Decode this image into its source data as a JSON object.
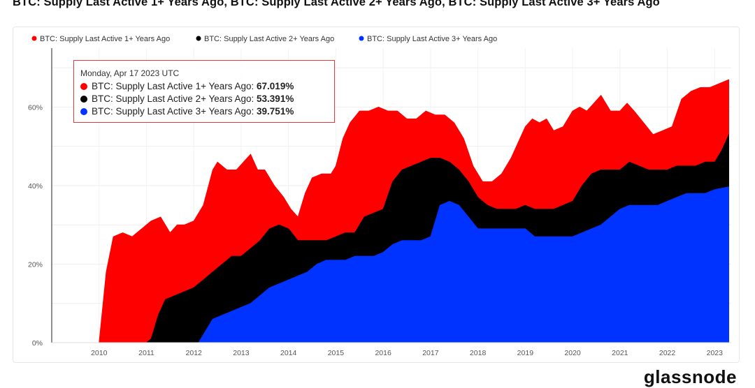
{
  "title": "BTC: Supply Last Active 1+ Years Ago, BTC: Supply Last Active 2+ Years Ago, BTC: Supply Last Active 3+ Years Ago",
  "brand": "glassnode",
  "tooltip": {
    "date": "Monday, Apr 17 2023 UTC",
    "rows": [
      {
        "label": "BTC: Supply Last Active 1+ Years Ago: ",
        "value": "67.019%",
        "color": "#ff0000"
      },
      {
        "label": "BTC: Supply Last Active 2+ Years Ago: ",
        "value": "53.391%",
        "color": "#000000"
      },
      {
        "label": "BTC: Supply Last Active 3+ Years Ago: ",
        "value": "39.751%",
        "color": "#0033ff"
      }
    ]
  },
  "chart_data": {
    "type": "area",
    "title": "BTC: Supply Last Active 1+ Years Ago, BTC: Supply Last Active 2+ Years Ago, BTC: Supply Last Active 3+ Years Ago",
    "xlabel": "",
    "ylabel": "",
    "ylim": [
      0,
      75
    ],
    "y_ticks": [
      "0%",
      "20%",
      "40%",
      "60%"
    ],
    "y_tick_values": [
      0,
      20,
      40,
      60
    ],
    "x_ticks": [
      "2010",
      "2011",
      "2012",
      "2013",
      "2014",
      "2015",
      "2016",
      "2017",
      "2018",
      "2019",
      "2020",
      "2021",
      "2022",
      "2023"
    ],
    "x_tick_values": [
      2010,
      2011,
      2012,
      2013,
      2014,
      2015,
      2016,
      2017,
      2018,
      2019,
      2020,
      2021,
      2022,
      2023
    ],
    "xlim": [
      2009.0,
      2023.35
    ],
    "grid": true,
    "legend_position": "top-left",
    "series": [
      {
        "name": "BTC: Supply Last Active 1+ Years Ago",
        "color": "#ff0000",
        "x": [
          2010.0,
          2010.15,
          2010.3,
          2010.5,
          2010.7,
          2010.9,
          2011.1,
          2011.3,
          2011.5,
          2011.65,
          2011.8,
          2012.0,
          2012.2,
          2012.4,
          2012.5,
          2012.7,
          2012.9,
          2013.05,
          2013.2,
          2013.35,
          2013.5,
          2013.7,
          2013.9,
          2014.05,
          2014.2,
          2014.35,
          2014.5,
          2014.7,
          2014.9,
          2015.0,
          2015.15,
          2015.3,
          2015.5,
          2015.7,
          2015.9,
          2016.1,
          2016.3,
          2016.5,
          2016.7,
          2016.9,
          2017.1,
          2017.3,
          2017.5,
          2017.7,
          2017.9,
          2018.0,
          2018.1,
          2018.3,
          2018.5,
          2018.7,
          2018.85,
          2019.0,
          2019.15,
          2019.3,
          2019.45,
          2019.6,
          2019.8,
          2020.0,
          2020.15,
          2020.3,
          2020.45,
          2020.6,
          2020.8,
          2021.0,
          2021.15,
          2021.3,
          2021.5,
          2021.7,
          2021.9,
          2022.1,
          2022.3,
          2022.5,
          2022.7,
          2022.9,
          2023.1,
          2023.3
        ],
        "values": [
          0,
          18,
          27,
          28,
          27,
          29,
          31,
          32,
          28,
          30,
          30,
          31,
          35,
          44,
          46,
          44,
          44,
          46,
          48,
          44,
          44,
          40,
          37,
          34,
          32,
          38,
          42,
          43,
          43,
          45,
          52,
          56,
          59,
          59,
          60,
          59,
          59,
          57,
          57,
          59,
          58,
          58,
          56,
          52,
          45,
          43,
          41,
          41,
          43,
          47,
          51,
          55,
          57,
          56,
          57,
          54,
          55,
          59,
          60,
          59,
          61,
          63,
          59,
          59,
          61,
          59,
          56,
          53,
          54,
          55,
          62,
          64,
          65,
          65,
          66,
          67
        ]
      },
      {
        "name": "BTC: Supply Last Active 2+ Years Ago",
        "color": "#000000",
        "x": [
          2010.0,
          2010.5,
          2011.0,
          2011.1,
          2011.25,
          2011.4,
          2011.6,
          2011.8,
          2012.0,
          2012.2,
          2012.4,
          2012.6,
          2012.8,
          2013.0,
          2013.2,
          2013.4,
          2013.6,
          2013.8,
          2014.0,
          2014.2,
          2014.4,
          2014.6,
          2014.8,
          2015.0,
          2015.2,
          2015.4,
          2015.6,
          2015.8,
          2016.0,
          2016.2,
          2016.4,
          2016.6,
          2016.8,
          2017.0,
          2017.2,
          2017.4,
          2017.6,
          2017.8,
          2018.0,
          2018.2,
          2018.4,
          2018.6,
          2018.8,
          2019.0,
          2019.2,
          2019.4,
          2019.6,
          2019.8,
          2020.0,
          2020.2,
          2020.4,
          2020.6,
          2020.8,
          2021.0,
          2021.2,
          2021.4,
          2021.6,
          2021.8,
          2022.0,
          2022.2,
          2022.4,
          2022.6,
          2022.8,
          2023.0,
          2023.15,
          2023.3
        ],
        "values": [
          0,
          0,
          0,
          1,
          7,
          11,
          12,
          13,
          14,
          16,
          18,
          20,
          22,
          22,
          24,
          26,
          29,
          30,
          29,
          26,
          26,
          26,
          26,
          27,
          28,
          28,
          32,
          33,
          34,
          41,
          44,
          45,
          46,
          47,
          47,
          46,
          44,
          41,
          37,
          35,
          34,
          34,
          34,
          35,
          34,
          34,
          34,
          35,
          36,
          40,
          43,
          44,
          44,
          44,
          46,
          45,
          44,
          44,
          44,
          45,
          45,
          45,
          46,
          46,
          49,
          53
        ]
      },
      {
        "name": "BTC: Supply Last Active 3+ Years Ago",
        "color": "#0033ff",
        "x": [
          2010.0,
          2011.0,
          2012.0,
          2012.1,
          2012.25,
          2012.4,
          2012.6,
          2012.8,
          2013.0,
          2013.2,
          2013.4,
          2013.6,
          2013.8,
          2014.0,
          2014.2,
          2014.4,
          2014.6,
          2014.8,
          2015.0,
          2015.2,
          2015.4,
          2015.6,
          2015.8,
          2016.0,
          2016.2,
          2016.4,
          2016.6,
          2016.8,
          2017.0,
          2017.2,
          2017.4,
          2017.6,
          2017.8,
          2018.0,
          2018.2,
          2018.4,
          2018.6,
          2018.8,
          2019.0,
          2019.2,
          2019.4,
          2019.6,
          2019.8,
          2020.0,
          2020.2,
          2020.4,
          2020.6,
          2020.8,
          2021.0,
          2021.2,
          2021.4,
          2021.6,
          2021.8,
          2022.0,
          2022.2,
          2022.4,
          2022.6,
          2022.8,
          2023.0,
          2023.3
        ],
        "values": [
          0,
          0,
          0,
          0,
          3,
          6,
          7,
          8,
          9,
          10,
          12,
          14,
          15,
          16,
          17,
          18,
          20,
          21,
          21,
          21,
          22,
          22,
          22,
          23,
          25,
          26,
          26,
          26,
          27,
          35,
          36,
          35,
          32,
          29,
          29,
          29,
          29,
          29,
          29,
          27,
          27,
          27,
          27,
          27,
          28,
          29,
          30,
          32,
          34,
          35,
          35,
          35,
          35,
          36,
          37,
          38,
          38,
          38,
          39,
          39.7
        ]
      }
    ]
  }
}
